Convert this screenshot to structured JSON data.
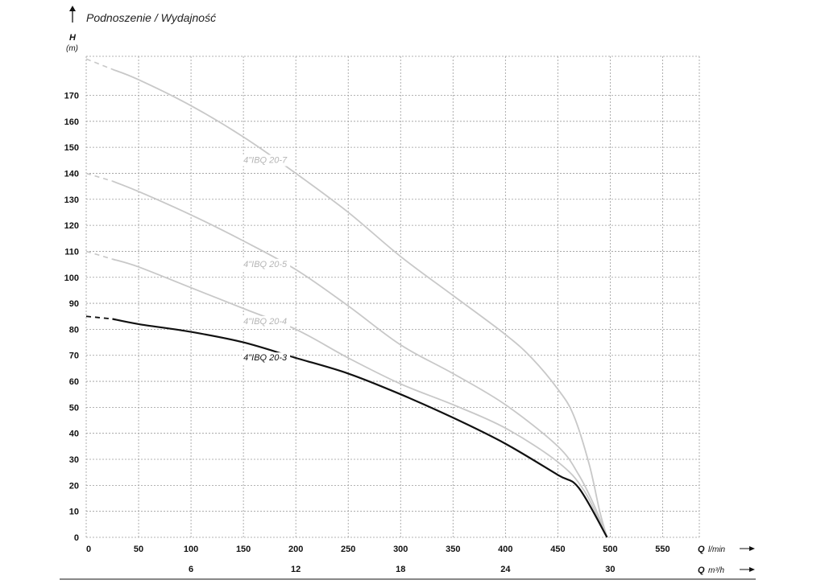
{
  "title": "Podnoszenie / Wydajność",
  "chart_data": {
    "type": "line",
    "title": "Podnoszenie / Wydajność",
    "ylabel": "H",
    "yunit": "(m)",
    "xlabel_primary": "Q",
    "xunit_primary": "l/min",
    "xlabel_secondary": "Q",
    "xunit_secondary": "m³/h",
    "xlim": [
      0,
      585
    ],
    "ylim": [
      0,
      185
    ],
    "x_ticks": [
      0,
      50,
      100,
      150,
      200,
      250,
      300,
      350,
      400,
      450,
      500,
      550
    ],
    "y_ticks": [
      0,
      10,
      20,
      30,
      40,
      50,
      60,
      70,
      80,
      90,
      100,
      110,
      120,
      130,
      140,
      150,
      160,
      170
    ],
    "x2_ticks": [
      {
        "at": 100,
        "label": "6"
      },
      {
        "at": 200,
        "label": "12"
      },
      {
        "at": 300,
        "label": "18"
      },
      {
        "at": 400,
        "label": "24"
      },
      {
        "at": 500,
        "label": "30"
      }
    ],
    "grid": true,
    "series": [
      {
        "name": "4\"IBQ 20-7",
        "color": "#c8c8c8",
        "label_at": [
          150,
          144
        ],
        "dashed": [
          [
            0,
            184
          ],
          [
            25,
            180
          ]
        ],
        "points": [
          [
            25,
            180
          ],
          [
            50,
            176
          ],
          [
            100,
            166
          ],
          [
            150,
            154
          ],
          [
            200,
            140
          ],
          [
            250,
            125
          ],
          [
            300,
            108
          ],
          [
            350,
            93
          ],
          [
            400,
            78
          ],
          [
            425,
            69
          ],
          [
            450,
            57
          ],
          [
            465,
            47
          ],
          [
            480,
            28
          ],
          [
            490,
            10
          ],
          [
            497,
            0
          ]
        ]
      },
      {
        "name": "4\"IBQ 20-5",
        "color": "#c8c8c8",
        "label_at": [
          150,
          104
        ],
        "dashed": [
          [
            0,
            140
          ],
          [
            25,
            137
          ]
        ],
        "points": [
          [
            25,
            137
          ],
          [
            50,
            133
          ],
          [
            100,
            124
          ],
          [
            150,
            114
          ],
          [
            200,
            103
          ],
          [
            250,
            89
          ],
          [
            300,
            74
          ],
          [
            350,
            63
          ],
          [
            400,
            51
          ],
          [
            450,
            35
          ],
          [
            470,
            24
          ],
          [
            485,
            12
          ],
          [
            497,
            0
          ]
        ]
      },
      {
        "name": "4\"IBQ 20-4",
        "color": "#c8c8c8",
        "label_at": [
          150,
          82
        ],
        "dashed": [
          [
            0,
            110
          ],
          [
            25,
            107
          ]
        ],
        "points": [
          [
            25,
            107
          ],
          [
            50,
            104
          ],
          [
            100,
            96
          ],
          [
            150,
            88
          ],
          [
            200,
            80
          ],
          [
            250,
            69
          ],
          [
            300,
            59
          ],
          [
            350,
            51
          ],
          [
            400,
            42
          ],
          [
            450,
            29
          ],
          [
            475,
            18
          ],
          [
            497,
            0
          ]
        ]
      },
      {
        "name": "4\"IBQ 20-3",
        "color": "#111111",
        "label_at": [
          150,
          68
        ],
        "dashed": [
          [
            0,
            85
          ],
          [
            25,
            84
          ]
        ],
        "points": [
          [
            25,
            84
          ],
          [
            50,
            82
          ],
          [
            100,
            79
          ],
          [
            150,
            75
          ],
          [
            200,
            69
          ],
          [
            250,
            63
          ],
          [
            300,
            55
          ],
          [
            350,
            46
          ],
          [
            400,
            36
          ],
          [
            450,
            24
          ],
          [
            470,
            19
          ],
          [
            497,
            0
          ]
        ]
      }
    ]
  }
}
